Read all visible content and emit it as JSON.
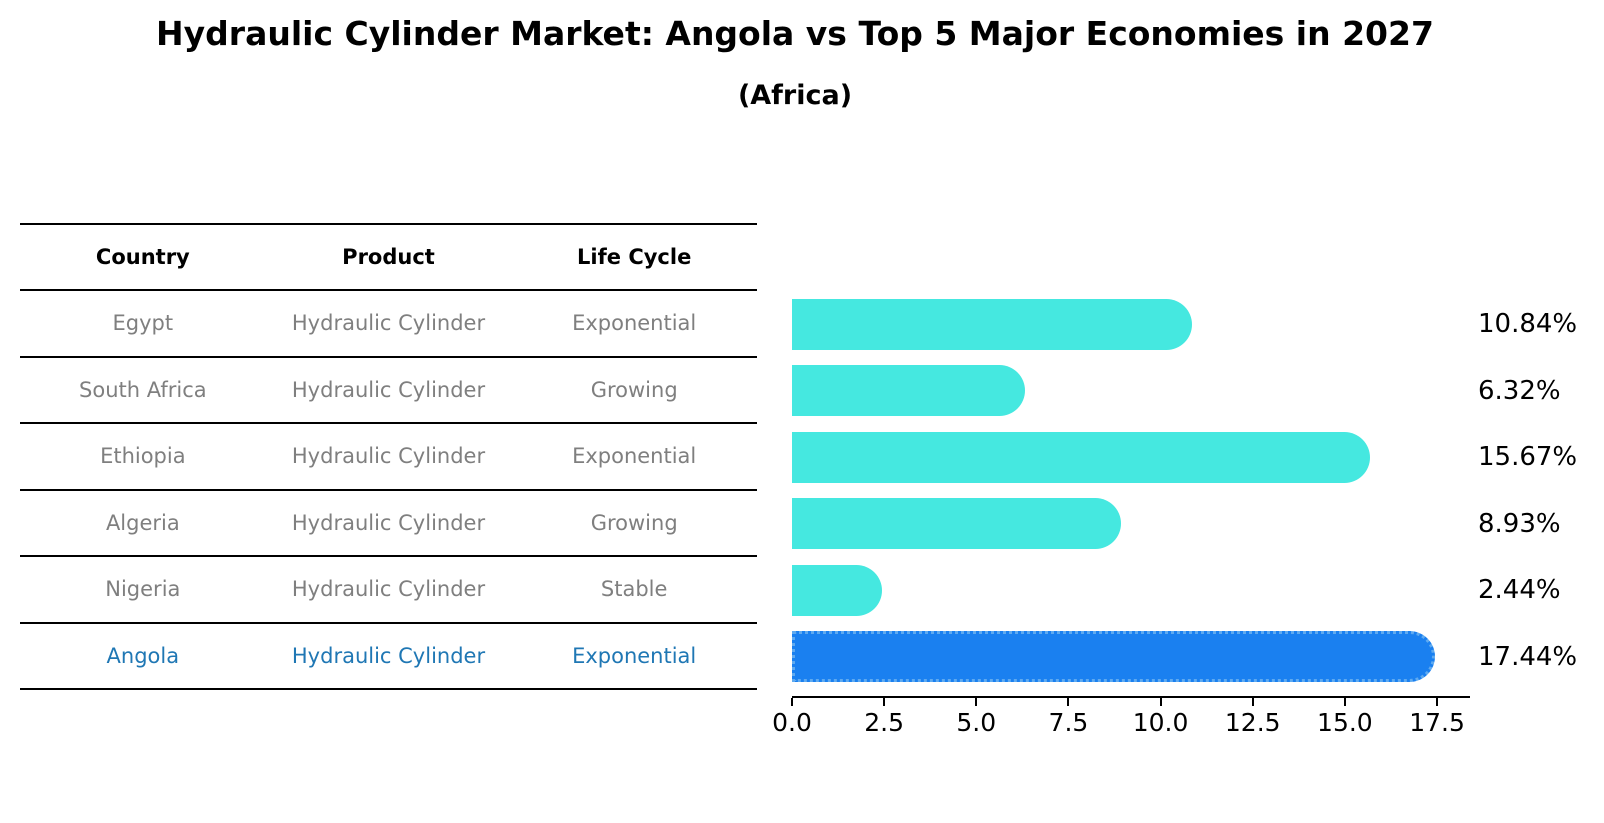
{
  "title": "Hydraulic Cylinder Market: Angola vs Top 5 Major Economies in 2027",
  "subtitle": "(Africa)",
  "table": {
    "headers": [
      "Country",
      "Product",
      "Life Cycle"
    ],
    "rows": [
      {
        "country": "Egypt",
        "product": "Hydraulic Cylinder",
        "life_cycle": "Exponential",
        "highlight": false
      },
      {
        "country": "South Africa",
        "product": "Hydraulic Cylinder",
        "life_cycle": "Growing",
        "highlight": false
      },
      {
        "country": "Ethiopia",
        "product": "Hydraulic Cylinder",
        "life_cycle": "Exponential",
        "highlight": false
      },
      {
        "country": "Algeria",
        "product": "Hydraulic Cylinder",
        "life_cycle": "Growing",
        "highlight": false
      },
      {
        "country": "Nigeria",
        "product": "Hydraulic Cylinder",
        "life_cycle": "Stable",
        "highlight": false
      },
      {
        "country": "Angola",
        "product": "Hydraulic Cylinder",
        "life_cycle": "Exponential",
        "highlight": true
      }
    ]
  },
  "chart_data": {
    "type": "bar",
    "orientation": "horizontal",
    "title": "Hydraulic Cylinder Market: Angola vs Top 5 Major Economies in 2027 (Africa)",
    "categories": [
      "Egypt",
      "South Africa",
      "Ethiopia",
      "Algeria",
      "Nigeria",
      "Angola"
    ],
    "values": [
      10.84,
      6.32,
      15.67,
      8.93,
      2.44,
      17.44
    ],
    "value_labels": [
      "10.84%",
      "6.32%",
      "15.67%",
      "8.93%",
      "2.44%",
      "17.44%"
    ],
    "unit": "%",
    "x_ticks": [
      0,
      2.5,
      5,
      7.5,
      10,
      12.5,
      15,
      17.5
    ],
    "x_tick_labels": [
      "0.0",
      "2.5",
      "5.0",
      "7.5",
      "10.0",
      "12.5",
      "15.0",
      "17.5"
    ],
    "xlim": [
      0,
      18.34
    ],
    "grid": false,
    "legend": null,
    "highlight_index": 5,
    "colors": {
      "bar": "#45E8E0",
      "highlight_bar": "#1A80F0",
      "highlight_edge": "#5FAAF0",
      "value_label": "#000000"
    }
  },
  "colors": {
    "background": "#FFFFFF",
    "title_text": "#000000",
    "table_line": "#000000",
    "header_text": "#000000",
    "row_text": "#7F7F7F",
    "highlight_text": "#1F77B4"
  }
}
